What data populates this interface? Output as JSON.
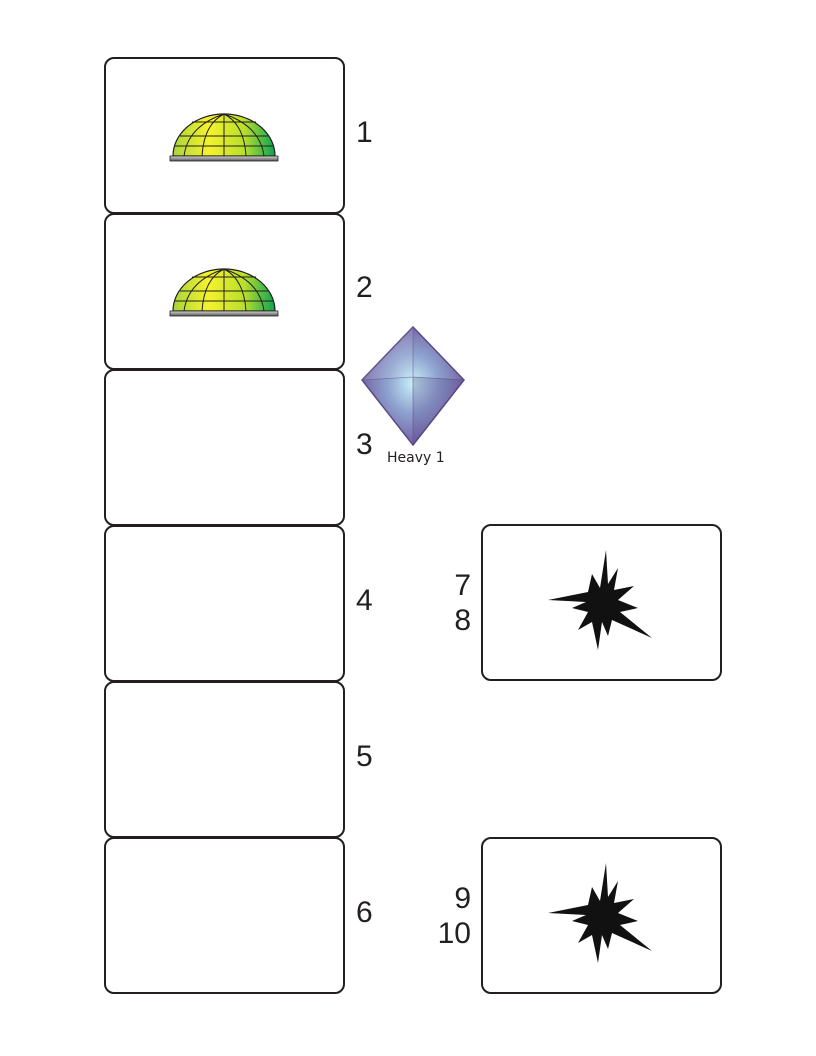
{
  "colors": {
    "card_border": "#231f20",
    "text": "#231f20",
    "dome_light": "#f5f22e",
    "dome_dark": "#0aa352",
    "gem_light": "#c9f1f7",
    "gem_dark": "#6f5a9e",
    "burst": "#111111"
  },
  "column_cards": [
    {
      "number": "1",
      "icon": "dome-icon"
    },
    {
      "number": "2",
      "icon": "dome-icon"
    },
    {
      "number": "3",
      "icon": ""
    },
    {
      "number": "4",
      "icon": ""
    },
    {
      "number": "5",
      "icon": ""
    },
    {
      "number": "6",
      "icon": ""
    }
  ],
  "gem_token": {
    "icon": "gem-icon",
    "label": "Heavy 1"
  },
  "side_cards": [
    {
      "numbers": [
        "7",
        "8"
      ],
      "icon": "burst-icon"
    },
    {
      "numbers": [
        "9",
        "10"
      ],
      "icon": "burst-icon"
    }
  ]
}
